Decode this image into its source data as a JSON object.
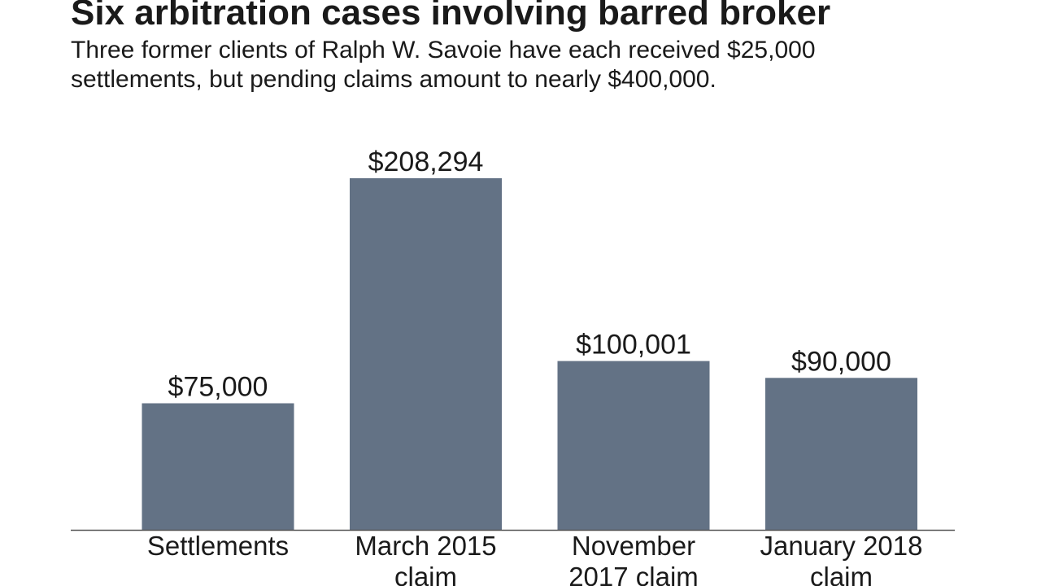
{
  "chart_data": {
    "type": "bar",
    "title": "Six arbitration cases involving barred broker",
    "subtitle": "Three former clients of Ralph W. Savoie have each received $25,000 settlements, but pending claims amount to nearly $400,000.",
    "categories": [
      [
        "Settlements"
      ],
      [
        "March 2015",
        "claim"
      ],
      [
        "November",
        "2017 claim"
      ],
      [
        "January 2018",
        "claim"
      ]
    ],
    "values": [
      75000,
      208294,
      100001,
      90000
    ],
    "value_labels": [
      "$75,000",
      "$208,294",
      "$100,001",
      "$90,000"
    ],
    "xlabel": "",
    "ylabel": "",
    "ylim": [
      0,
      208294
    ],
    "grid": false,
    "legend": "none"
  },
  "colors": {
    "bar": "#637285",
    "axis": "#555555",
    "text": "#1a1a1a"
  }
}
